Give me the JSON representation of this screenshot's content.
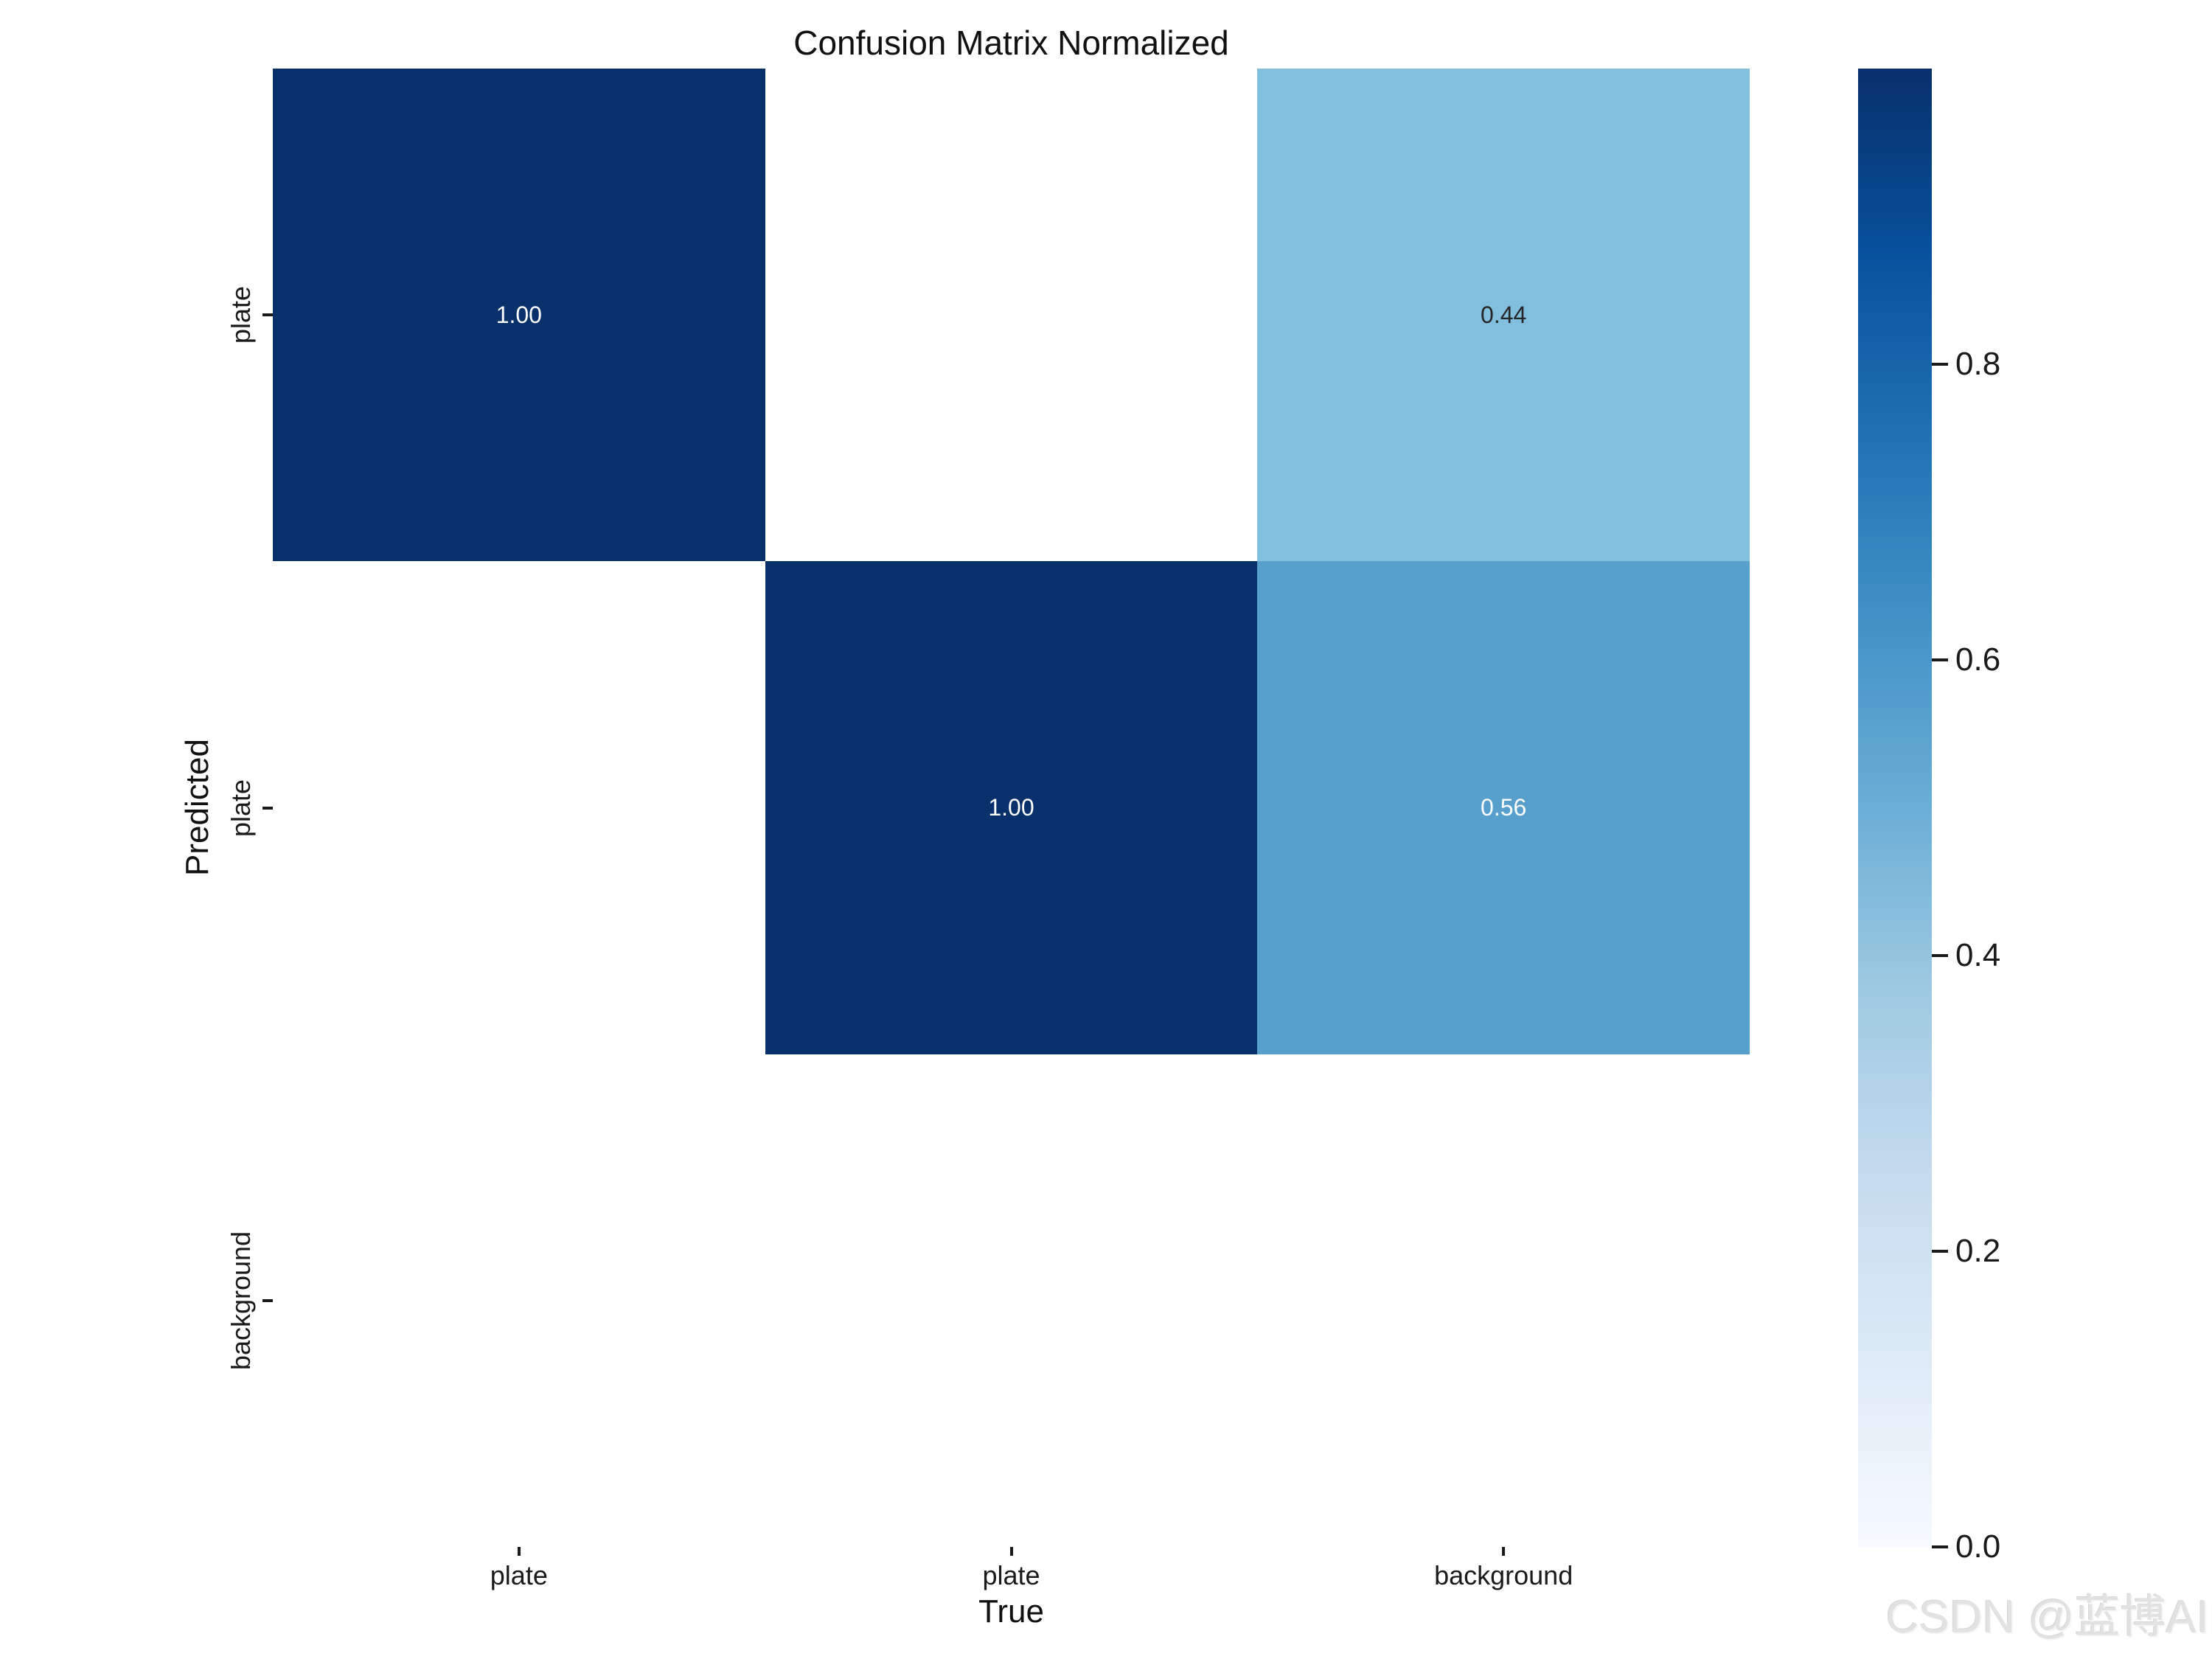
{
  "title": "Confusion Matrix Normalized",
  "watermark": "CSDN @蓝博AI",
  "chart_data": {
    "type": "heatmap",
    "title": "Confusion Matrix Normalized",
    "xlabel": "True",
    "ylabel": "Predicted",
    "x_categories": [
      "plate",
      "plate",
      "background"
    ],
    "y_categories": [
      "plate",
      "plate",
      "background"
    ],
    "matrix": [
      [
        1.0,
        null,
        0.44
      ],
      [
        null,
        1.0,
        0.56
      ],
      [
        null,
        null,
        null
      ]
    ],
    "annotations": [
      [
        "1.00",
        "",
        "0.44"
      ],
      [
        "",
        "1.00",
        "0.56"
      ],
      [
        "",
        "",
        ""
      ]
    ],
    "cell_colors": [
      [
        "#08306b",
        "#ffffff",
        "#82bedd"
      ],
      [
        "#ffffff",
        "#08306b",
        "#579fcd"
      ],
      [
        "#ffffff",
        "#ffffff",
        "#ffffff"
      ]
    ],
    "annotation_text_colors": [
      [
        "#ffffff",
        "",
        "#262626"
      ],
      [
        "",
        "#ffffff",
        "#ffffff"
      ],
      [
        "",
        "",
        ""
      ]
    ],
    "grid": false,
    "legend_position": "right",
    "colorbar": {
      "min": 0.0,
      "max": 1.0,
      "ticks": [
        "0.8",
        "0.6",
        "0.4",
        "0.2",
        "0.0"
      ],
      "tick_values": [
        0.8,
        0.6,
        0.4,
        0.2,
        0.0
      ],
      "colormap_name": "Blues",
      "gradient_stops": [
        {
          "value": 0.0,
          "color": "#f7fbff"
        },
        {
          "value": 0.125,
          "color": "#deebf7"
        },
        {
          "value": 0.25,
          "color": "#c6dbef"
        },
        {
          "value": 0.375,
          "color": "#9ecae1"
        },
        {
          "value": 0.5,
          "color": "#6baed6"
        },
        {
          "value": 0.625,
          "color": "#4292c6"
        },
        {
          "value": 0.75,
          "color": "#2171b5"
        },
        {
          "value": 0.875,
          "color": "#08519c"
        },
        {
          "value": 1.0,
          "color": "#08306b"
        }
      ]
    }
  }
}
